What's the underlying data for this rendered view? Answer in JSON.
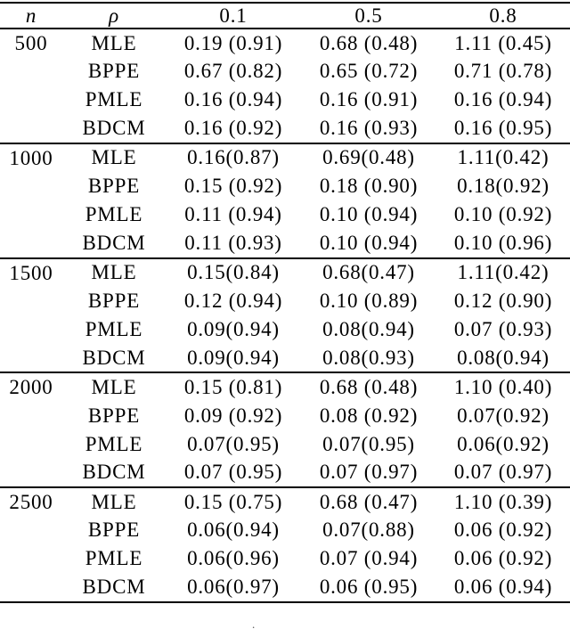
{
  "page": {
    "background_color": "#ffffff",
    "text_color": "#000000",
    "rule_color": "#000000"
  },
  "table": {
    "headers": [
      "n",
      "ρ",
      "0.1",
      "0.5",
      "0.8"
    ],
    "groups": [
      {
        "n": "500",
        "rows": [
          {
            "method": "MLE",
            "values": [
              "0.19 (0.91)",
              "0.68 (0.48)",
              "1.11 (0.45)"
            ]
          },
          {
            "method": "BPPE",
            "values": [
              "0.67 (0.82)",
              "0.65 (0.72)",
              "0.71 (0.78)"
            ]
          },
          {
            "method": "PMLE",
            "values": [
              "0.16 (0.94)",
              "0.16 (0.91)",
              "0.16 (0.94)"
            ]
          },
          {
            "method": "BDCM",
            "values": [
              "0.16 (0.92)",
              "0.16 (0.93)",
              "0.16 (0.95)"
            ]
          }
        ]
      },
      {
        "n": "1000",
        "rows": [
          {
            "method": "MLE",
            "values": [
              "0.16(0.87)",
              "0.69(0.48)",
              "1.11(0.42)"
            ]
          },
          {
            "method": "BPPE",
            "values": [
              "0.15 (0.92)",
              "0.18 (0.90)",
              "0.18(0.92)"
            ]
          },
          {
            "method": "PMLE",
            "values": [
              "0.11 (0.94)",
              "0.10 (0.94)",
              "0.10 (0.92)"
            ]
          },
          {
            "method": "BDCM",
            "values": [
              "0.11 (0.93)",
              "0.10 (0.94)",
              "0.10 (0.96)"
            ]
          }
        ]
      },
      {
        "n": "1500",
        "rows": [
          {
            "method": "MLE",
            "values": [
              "0.15(0.84)",
              "0.68(0.47)",
              "1.11(0.42)"
            ]
          },
          {
            "method": "BPPE",
            "values": [
              "0.12 (0.94)",
              "0.10 (0.89)",
              "0.12 (0.90)"
            ]
          },
          {
            "method": "PMLE",
            "values": [
              "0.09(0.94)",
              "0.08(0.94)",
              "0.07 (0.93)"
            ]
          },
          {
            "method": "BDCM",
            "values": [
              "0.09(0.94)",
              "0.08(0.93)",
              "0.08(0.94)"
            ]
          }
        ]
      },
      {
        "n": "2000",
        "rows": [
          {
            "method": "MLE",
            "values": [
              "0.15 (0.81)",
              "0.68 (0.48)",
              "1.10 (0.40)"
            ]
          },
          {
            "method": "BPPE",
            "values": [
              "0.09 (0.92)",
              "0.08 (0.92)",
              "0.07(0.92)"
            ]
          },
          {
            "method": "PMLE",
            "values": [
              "0.07(0.95)",
              "0.07(0.95)",
              "0.06(0.92)"
            ]
          },
          {
            "method": "BDCM",
            "values": [
              "0.07 (0.95)",
              "0.07 (0.97)",
              "0.07 (0.97)"
            ]
          }
        ]
      },
      {
        "n": "2500",
        "rows": [
          {
            "method": "MLE",
            "values": [
              "0.15 (0.75)",
              "0.68 (0.47)",
              "1.10 (0.39)"
            ]
          },
          {
            "method": "BPPE",
            "values": [
              "0.06(0.94)",
              "0.07(0.88)",
              "0.06 (0.92)"
            ]
          },
          {
            "method": "PMLE",
            "values": [
              "0.06(0.96)",
              "0.07 (0.94)",
              "0.06 (0.92)"
            ]
          },
          {
            "method": "BDCM",
            "values": [
              "0.06(0.97)",
              "0.06 (0.95)",
              "0.06 (0.94)"
            ]
          }
        ]
      }
    ]
  },
  "caption_fragment": "."
}
